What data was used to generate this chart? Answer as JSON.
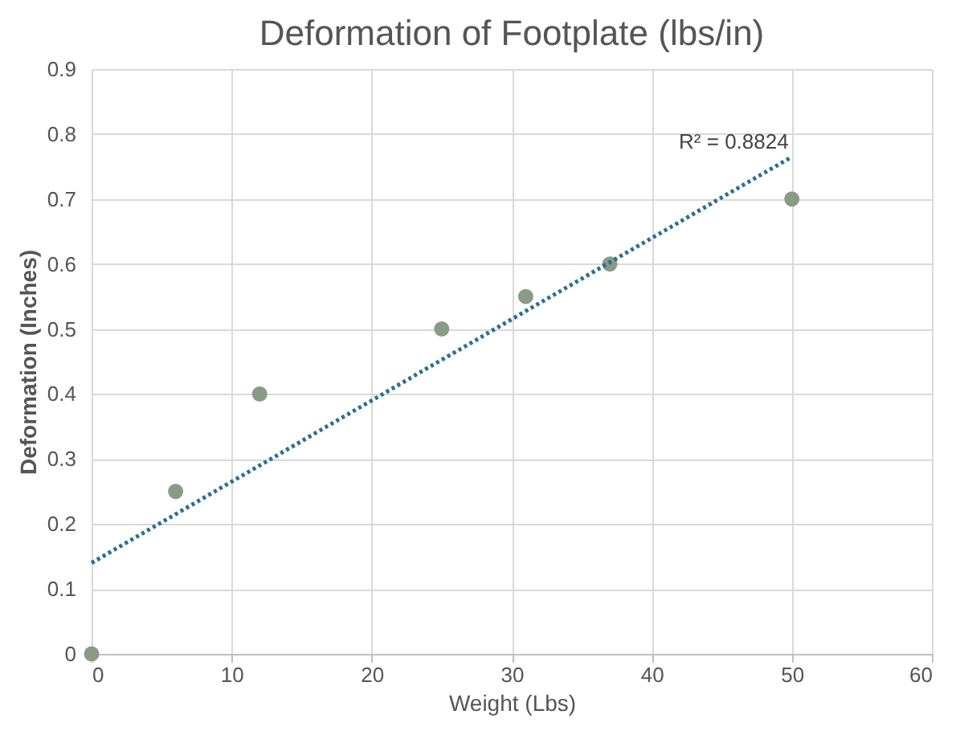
{
  "chart_data": {
    "type": "scatter",
    "title": "Deformation of Footplate (lbs/in)",
    "xlabel": "Weight (Lbs)",
    "ylabel": "Deformation (Inches)",
    "x": [
      0,
      6,
      12,
      25,
      31,
      37,
      50
    ],
    "series": [
      {
        "color": "#8a9a86",
        "marker": "circle",
        "values": [
          0,
          0.25,
          0.4,
          0.5,
          0.55,
          0.6,
          0.7
        ]
      },
      {
        "type": "line",
        "color": "#2e6e8e",
        "line_style": "dotted",
        "marker": "none",
        "x": [
          0,
          50
        ],
        "values": [
          0.14,
          0.765
        ]
      }
    ],
    "annotations": [
      "R² = 0.8824"
    ],
    "xlim": [
      0,
      60
    ],
    "xticks": [
      0,
      10,
      20,
      30,
      40,
      50,
      60
    ],
    "ylim": [
      0,
      0.9
    ],
    "yticks": [
      0,
      0.1,
      0.2,
      0.3,
      0.4,
      0.5,
      0.6,
      0.7,
      0.8,
      0.9
    ],
    "grid": true
  }
}
